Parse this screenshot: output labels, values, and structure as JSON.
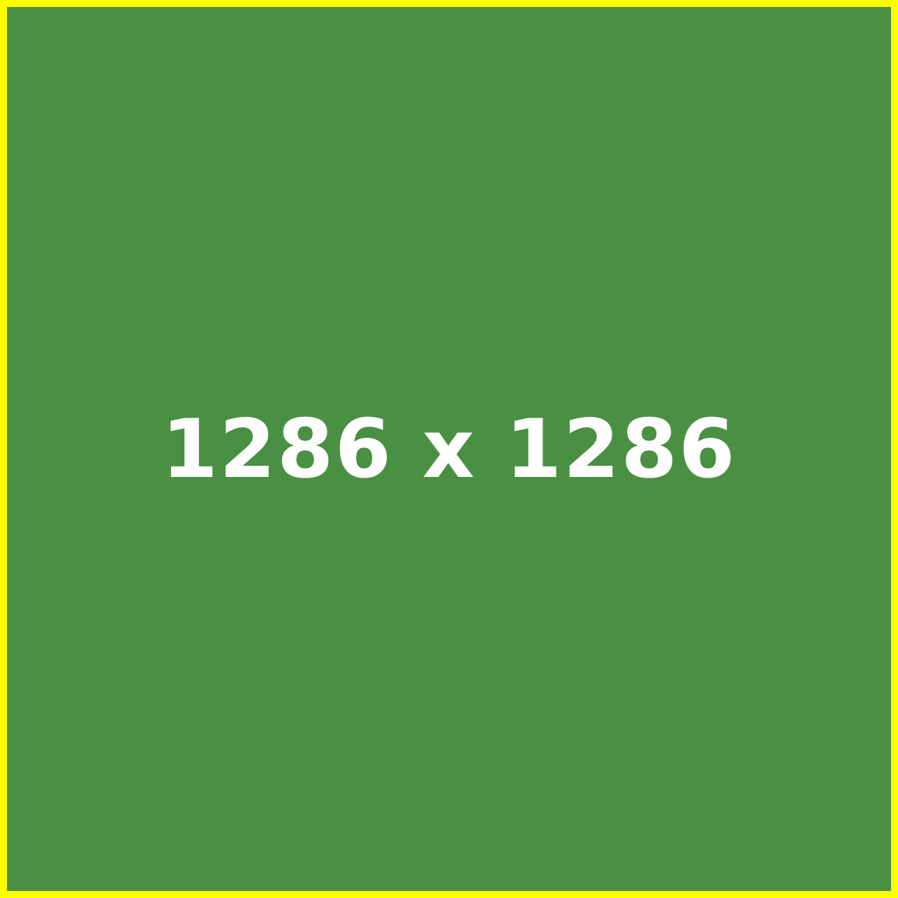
{
  "placeholder": {
    "text": "1286 x 1286",
    "background_color": "#4a9043",
    "border_color": "#ffff00",
    "text_color": "#ffffff"
  }
}
